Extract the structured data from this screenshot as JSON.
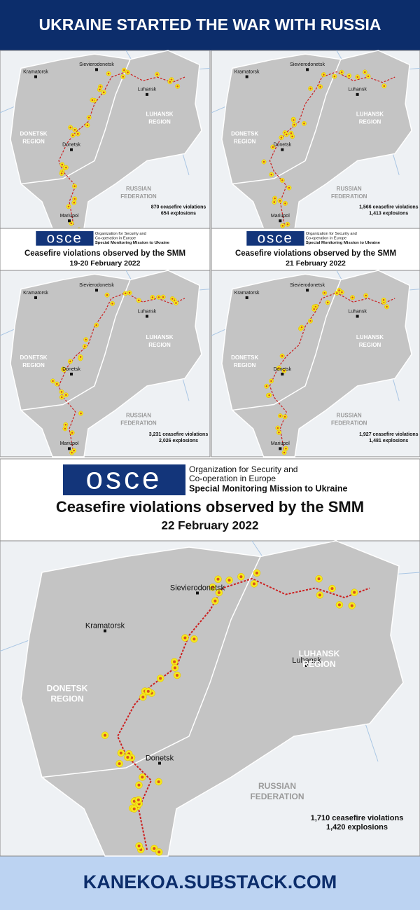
{
  "header": {
    "title": "UKRAINE STARTED THE WAR WITH RUSSIA"
  },
  "maps": [
    {
      "labels": {
        "sievierodonetsk": "Sievierodonetsk",
        "kramatorsk": "Kramatorsk",
        "luhansk": "Luhansk",
        "luhansk_region": [
          "LUHANSK",
          "REGION"
        ],
        "donetsk_region": [
          "DONETSK",
          "REGION"
        ],
        "donetsk": "Donetsk",
        "russia": [
          "RUSSIAN",
          "FEDERATION"
        ],
        "mariupol": "Mariupol"
      },
      "stats": [
        "870 ceasefire violations",
        "654 explosions"
      ]
    },
    {
      "labels": {
        "sievierodonetsk": "Sievierodonetsk",
        "kramatorsk": "Kramatorsk",
        "luhansk": "Luhansk",
        "luhansk_region": [
          "LUHANSK",
          "REGION"
        ],
        "donetsk_region": [
          "DONETSK",
          "REGION"
        ],
        "donetsk": "Donetsk",
        "russia": [
          "RUSSIAN",
          "FEDERATION"
        ],
        "mariupol": "Mariupol"
      },
      "stats": [
        "1,566 ceasefire violations",
        "1,413 explosions"
      ]
    },
    {
      "labels": {
        "sievierodonetsk": "Sievierodonetsk",
        "kramatorsk": "Kramatorsk",
        "luhansk": "Luhansk",
        "luhansk_region": [
          "LUHANSK",
          "REGION"
        ],
        "donetsk_region": [
          "DONETSK",
          "REGION"
        ],
        "donetsk": "Donetsk",
        "russia": [
          "RUSSIAN",
          "FEDERATION"
        ],
        "mariupol": "Mariupol"
      },
      "stats": [
        "3,231 ceasefire violations",
        "2,026 explosions"
      ]
    },
    {
      "labels": {
        "sievierodonetsk": "Sievierodonetsk",
        "kramatorsk": "Kramatorsk",
        "luhansk": "Luhansk",
        "luhansk_region": [
          "LUHANSK",
          "REGION"
        ],
        "donetsk_region": [
          "DONETSK",
          "REGION"
        ],
        "donetsk": "Donetsk",
        "russia": [
          "RUSSIAN",
          "FEDERATION"
        ],
        "mariupol": "Mariupol"
      },
      "stats": [
        "1,927 ceasefire violations",
        "1,481 explosions"
      ]
    },
    {
      "labels": {
        "sievierodonetsk": "Sievierodonetsk",
        "kramatorsk": "Kramatorsk",
        "luhansk": "Luhansk",
        "luhansk_region": [
          "LUHANSK",
          "REGION"
        ],
        "donetsk_region": [
          "DONETSK",
          "REGION"
        ],
        "donetsk": "Donetsk",
        "russia": [
          "RUSSIAN",
          "FEDERATION"
        ]
      },
      "stats": [
        "1,710 ceasefire violations",
        "1,420 explosions"
      ]
    }
  ],
  "captions": [
    {
      "logo": "osce",
      "org": [
        "Organization for Security and",
        "Co-operation in Europe"
      ],
      "mission": "Special Monitoring Mission to Ukraine",
      "title": "Ceasefire violations observed by the SMM",
      "date": "19-20 February 2022"
    },
    {
      "logo": "osce",
      "org": [
        "Organization for Security and",
        "Co-operation in Europe"
      ],
      "mission": "Special Monitoring Mission to Ukraine",
      "title": "Ceasefire violations observed by the SMM",
      "date": "21 February 2022"
    },
    {
      "logo": "osce",
      "org": [
        "Organization for Security and",
        "Co-operation in Europe"
      ],
      "mission": "Special Monitoring Mission to Ukraine",
      "title": "Ceasefire violations observed by the SMM",
      "date": "22 February 2022"
    }
  ],
  "footer": {
    "text": "KANEKOA.SUBSTACK.COM"
  }
}
